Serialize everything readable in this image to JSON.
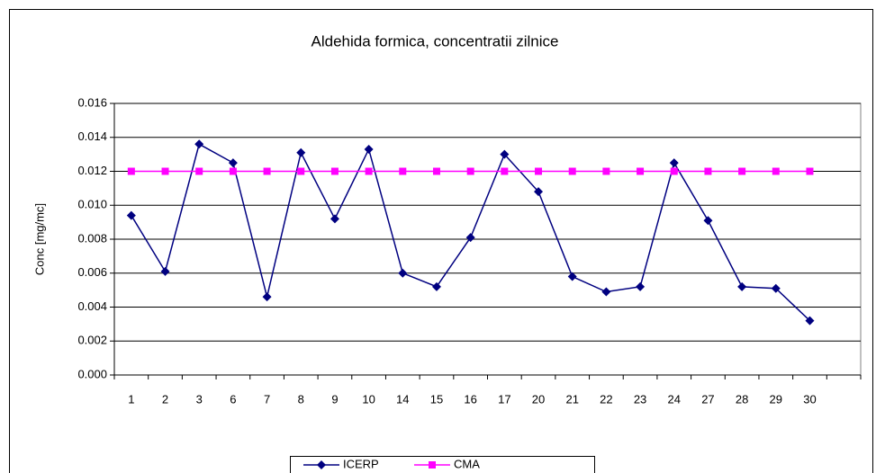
{
  "chart_data": {
    "type": "line",
    "title": "Aldehida formica, concentratii zilnice",
    "y_label": "Conc [mg/mc]",
    "categories": [
      "1",
      "2",
      "3",
      "6",
      "7",
      "8",
      "9",
      "10",
      "14",
      "15",
      "16",
      "17",
      "20",
      "21",
      "22",
      "23",
      "24",
      "27",
      "28",
      "29",
      "30",
      null
    ],
    "series": [
      {
        "name": "ICERP",
        "color": "#000080",
        "marker": "diamond",
        "values": [
          0.0094,
          0.0061,
          0.0136,
          0.0125,
          0.0046,
          0.0131,
          0.0092,
          0.0133,
          0.006,
          0.0052,
          0.0081,
          0.013,
          0.0108,
          0.0058,
          0.0049,
          0.0052,
          0.0125,
          0.0091,
          0.0052,
          0.0051,
          0.0032,
          null
        ]
      },
      {
        "name": "CMA",
        "color": "#ff00ff",
        "marker": "square",
        "values": [
          0.012,
          0.012,
          0.012,
          0.012,
          0.012,
          0.012,
          0.012,
          0.012,
          0.012,
          0.012,
          0.012,
          0.012,
          0.012,
          0.012,
          0.012,
          0.012,
          0.012,
          0.012,
          0.012,
          0.012,
          0.012,
          null
        ]
      }
    ],
    "ylim": [
      0,
      0.016
    ],
    "yticks": [
      {
        "value": 0,
        "label": "0.000"
      },
      {
        "value": 0.002,
        "label": "0.002"
      },
      {
        "value": 0.004,
        "label": "0.004"
      },
      {
        "value": 0.006,
        "label": "0.006"
      },
      {
        "value": 0.008,
        "label": "0.008"
      },
      {
        "value": 0.01,
        "label": "0.010"
      },
      {
        "value": 0.012,
        "label": "0.012"
      },
      {
        "value": 0.014,
        "label": "0.014"
      },
      {
        "value": 0.016,
        "label": "0.016"
      }
    ],
    "grid": true,
    "legend": "bottom"
  }
}
